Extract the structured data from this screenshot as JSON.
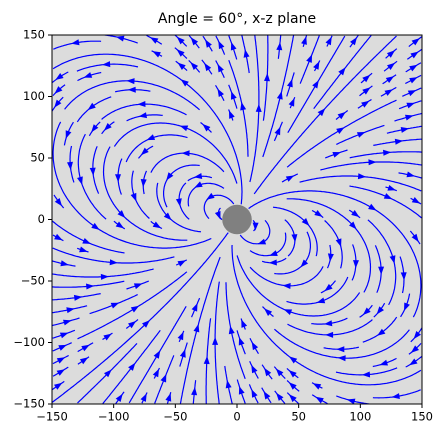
{
  "chart_data": {
    "type": "streamplot",
    "title": "Angle = 60°, x-z plane",
    "dipole_angle": 60,
    "xlim": [
      -150,
      150
    ],
    "ylim": [
      -150,
      150
    ],
    "xticks": [
      {
        "value": -150,
        "label": "−150"
      },
      {
        "value": -100,
        "label": "−100"
      },
      {
        "value": -50,
        "label": "−50"
      },
      0,
      50,
      100,
      150
    ],
    "yticks": [
      {
        "value": -150,
        "label": "−150"
      },
      {
        "value": -100,
        "label": "−100"
      },
      {
        "value": -50,
        "label": "−50"
      },
      0,
      50,
      100,
      150
    ],
    "color": "#0000ff",
    "background": "#dcdcdc",
    "source_color": "#808080"
  }
}
